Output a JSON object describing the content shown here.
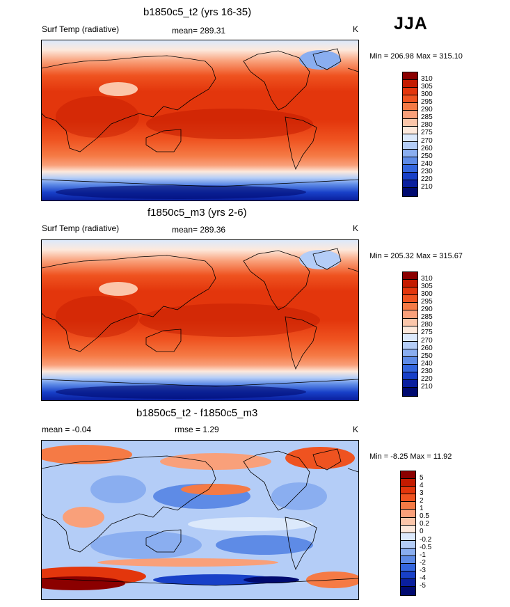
{
  "season": "JJA",
  "panels": [
    {
      "title": "b1850c5_t2 (yrs 16-35)",
      "left_label": "Surf Temp (radiative)",
      "center_label": "mean= 289.31",
      "units": "K",
      "minmax": "Min = 206.98 Max = 315.10",
      "colorbar": {
        "labels": [
          "310",
          "305",
          "300",
          "295",
          "290",
          "285",
          "280",
          "275",
          "270",
          "260",
          "250",
          "240",
          "230",
          "220",
          "210"
        ],
        "colors": [
          "#8b0000",
          "#c41b00",
          "#e3360c",
          "#ef5320",
          "#f57a45",
          "#f9a07a",
          "#fbc6aa",
          "#fde9dc",
          "#dce9fb",
          "#b4cdf7",
          "#8aaef0",
          "#5e8be6",
          "#3466dd",
          "#1840c8",
          "#0a1f9e",
          "#000a70"
        ]
      }
    },
    {
      "title": "f1850c5_m3 (yrs 2-6)",
      "left_label": "Surf Temp (radiative)",
      "center_label": "mean= 289.36",
      "units": "K",
      "minmax": "Min = 205.32 Max = 315.67",
      "colorbar": {
        "labels": [
          "310",
          "305",
          "300",
          "295",
          "290",
          "285",
          "280",
          "275",
          "270",
          "260",
          "250",
          "240",
          "230",
          "220",
          "210"
        ],
        "colors": [
          "#8b0000",
          "#c41b00",
          "#e3360c",
          "#ef5320",
          "#f57a45",
          "#f9a07a",
          "#fbc6aa",
          "#fde9dc",
          "#dce9fb",
          "#b4cdf7",
          "#8aaef0",
          "#5e8be6",
          "#3466dd",
          "#1840c8",
          "#0a1f9e",
          "#000a70"
        ]
      }
    },
    {
      "title": "b1850c5_t2 - f1850c5_m3",
      "left_label": "mean =  -0.04",
      "center_label": "rmse =   1.29",
      "units": "K",
      "minmax": "Min = -8.25 Max =  11.92",
      "colorbar": {
        "labels": [
          "5",
          "4",
          "3",
          "2",
          "1",
          "0.5",
          "0.2",
          "0",
          "-0.2",
          "-0.5",
          "-1",
          "-2",
          "-3",
          "-4",
          "-5"
        ],
        "colors": [
          "#8b0000",
          "#c41b00",
          "#e3360c",
          "#ef5320",
          "#f57a45",
          "#f9a07a",
          "#fbc6aa",
          "#fde9dc",
          "#dce9fb",
          "#b4cdf7",
          "#8aaef0",
          "#5e8be6",
          "#3466dd",
          "#1840c8",
          "#0a1f9e",
          "#000a70"
        ]
      }
    }
  ]
}
